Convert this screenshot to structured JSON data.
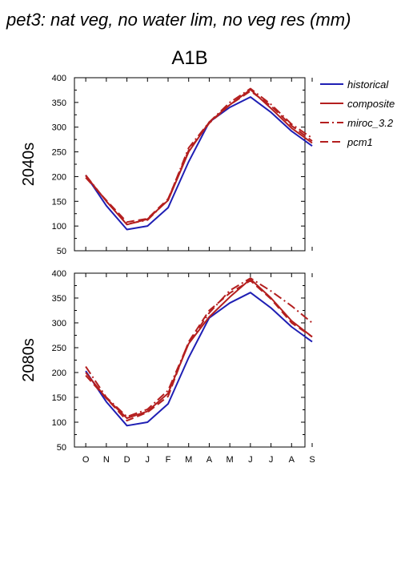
{
  "figure": {
    "title": "pet3: nat veg, no water lim, no veg res (mm)",
    "subtitle": "A1B"
  },
  "legend": [
    {
      "label": "historical",
      "color": "#1f1fb4",
      "dash": "solid"
    },
    {
      "label": "composite",
      "color": "#b41f1f",
      "dash": "solid"
    },
    {
      "label": "miroc_3.2",
      "color": "#b41f1f",
      "dash": "dashdot"
    },
    {
      "label": "pcm1",
      "color": "#b41f1f",
      "dash": "dashed"
    }
  ],
  "chart_data": [
    {
      "type": "line",
      "ylabel": "2040s",
      "categories": [
        "O",
        "N",
        "D",
        "J",
        "F",
        "M",
        "A",
        "M",
        "J",
        "J",
        "A",
        "S"
      ],
      "ylim": [
        50,
        400
      ],
      "yticks": [
        50,
        100,
        150,
        200,
        250,
        300,
        350,
        400
      ],
      "series": [
        {
          "name": "historical",
          "color": "#1f1fb4",
          "dash": "solid",
          "values": [
            203,
            141,
            93,
            100,
            137,
            230,
            310,
            340,
            361,
            330,
            292,
            262
          ]
        },
        {
          "name": "composite",
          "color": "#b41f1f",
          "dash": "solid",
          "values": [
            202,
            150,
            103,
            114,
            152,
            250,
            310,
            345,
            376,
            338,
            298,
            268
          ]
        },
        {
          "name": "miroc_3.2",
          "color": "#b41f1f",
          "dash": "dashdot",
          "values": [
            203,
            150,
            104,
            112,
            153,
            258,
            310,
            350,
            378,
            346,
            306,
            278
          ]
        },
        {
          "name": "pcm1",
          "color": "#b41f1f",
          "dash": "dashed",
          "values": [
            198,
            152,
            108,
            115,
            155,
            253,
            308,
            345,
            373,
            343,
            303,
            272
          ]
        }
      ]
    },
    {
      "type": "line",
      "ylabel": "2080s",
      "categories": [
        "O",
        "N",
        "D",
        "J",
        "F",
        "M",
        "A",
        "M",
        "J",
        "J",
        "A",
        "S"
      ],
      "ylim": [
        50,
        400
      ],
      "yticks": [
        50,
        100,
        150,
        200,
        250,
        300,
        350,
        400
      ],
      "series": [
        {
          "name": "historical",
          "color": "#1f1fb4",
          "dash": "solid",
          "values": [
            203,
            141,
            93,
            100,
            137,
            230,
            310,
            340,
            361,
            330,
            292,
            262
          ]
        },
        {
          "name": "composite",
          "color": "#b41f1f",
          "dash": "solid",
          "values": [
            200,
            148,
            108,
            122,
            158,
            258,
            312,
            352,
            388,
            350,
            304,
            272
          ]
        },
        {
          "name": "miroc_3.2",
          "color": "#b41f1f",
          "dash": "dashdot",
          "values": [
            212,
            150,
            111,
            126,
            164,
            260,
            320,
            365,
            390,
            364,
            334,
            300
          ]
        },
        {
          "name": "pcm1",
          "color": "#b41f1f",
          "dash": "dashed",
          "values": [
            194,
            148,
            103,
            120,
            152,
            262,
            325,
            360,
            385,
            348,
            300,
            272
          ]
        }
      ]
    }
  ]
}
